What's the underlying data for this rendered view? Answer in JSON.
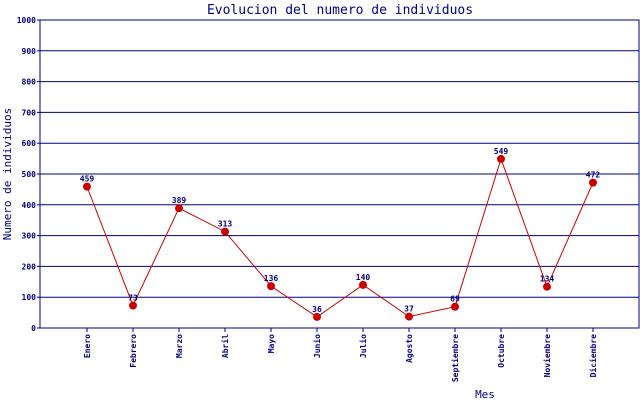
{
  "chart_data": {
    "type": "line",
    "title": "Evolucion del numero de individuos",
    "xlabel": "Mes",
    "ylabel": "Numero de individuos",
    "ylim": [
      0,
      1000
    ],
    "yticks": [
      0,
      100,
      200,
      300,
      400,
      500,
      600,
      700,
      800,
      900,
      1000
    ],
    "grid": true,
    "categories": [
      "Enero",
      "Febrero",
      "Marzo",
      "Abril",
      "Mayo",
      "Junio",
      "Julio",
      "Agosto",
      "Septiembre",
      "Octubre",
      "Noviembre",
      "Diciembre"
    ],
    "series": [
      {
        "values": [
          459,
          73,
          389,
          313,
          136,
          36,
          140,
          37,
          69,
          549,
          134,
          472
        ],
        "color": "#cc0000"
      }
    ],
    "colors": {
      "axis": "#000080",
      "series": "#cc0000",
      "background": "#ffffff"
    }
  }
}
